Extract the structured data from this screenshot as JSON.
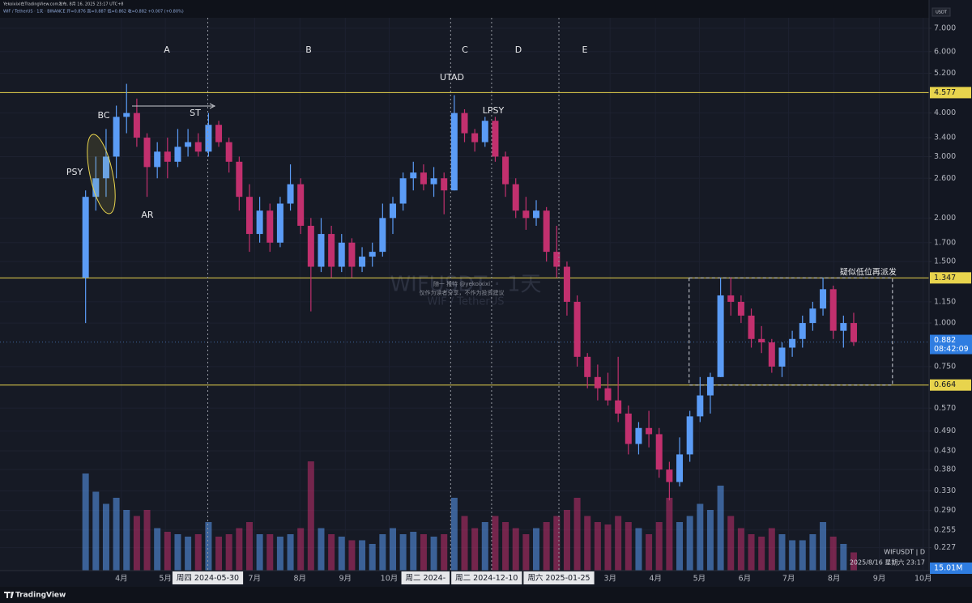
{
  "chart_data": {
    "type": "candlestick",
    "header": "Yekoixixi在TradingView.com发布, 8月 16, 2025 23:17 UTC+8",
    "subheader": "WIF / TetherUS · 1天 · BINANCE  开=0.876 高=0.887 低=0.862 收=0.882 +0.007 (+0.80%)",
    "currency": "USDT",
    "watermark": [
      "WIFUSDT · 1天",
      "WIF / TetherUS"
    ],
    "watermark_note": [
      "随一 推特 @yekoixixi",
      "仅作为读者分享，不作为投资建议"
    ],
    "annotations": [
      "A",
      "B",
      "C",
      "D",
      "E",
      "UTAD",
      "LPSY",
      "BC",
      "ST",
      "PSY",
      "AR"
    ],
    "symbol_label": "WIFUSDT | D",
    "datetime_label": "2025/8/16 星期六 23:17",
    "brand": "TradingView",
    "countdown": "08:42:09",
    "log_scale": true,
    "grid": true,
    "up_color": "#5b9cf6",
    "down_color": "#c2306e",
    "level_color": "#e8d44d",
    "xlim": [
      "2024-01-09",
      "2025-10-05"
    ],
    "ylim": [
      0.195,
      7.5
    ],
    "yticks": [
      {
        "value": 7,
        "label": "7.000"
      },
      {
        "value": 6,
        "label": "6.000"
      },
      {
        "value": 5.2,
        "label": "5.200"
      },
      {
        "value": 4,
        "label": "4.000"
      },
      {
        "value": 3.4,
        "label": "3.400"
      },
      {
        "value": 3,
        "label": "3.000"
      },
      {
        "value": 2.6,
        "label": "2.600"
      },
      {
        "value": 2,
        "label": "2.000"
      },
      {
        "value": 1.7,
        "label": "1.700"
      },
      {
        "value": 1.5,
        "label": "1.500"
      },
      {
        "value": 1.15,
        "label": "1.150"
      },
      {
        "value": 1,
        "label": "1.000"
      },
      {
        "value": 0.75,
        "label": "0.750"
      },
      {
        "value": 0.57,
        "label": "0.570"
      },
      {
        "value": 0.49,
        "label": "0.490"
      },
      {
        "value": 0.43,
        "label": "0.430"
      },
      {
        "value": 0.38,
        "label": "0.380"
      },
      {
        "value": 0.33,
        "label": "0.330"
      },
      {
        "value": 0.29,
        "label": "0.290"
      },
      {
        "value": 0.255,
        "label": "0.255"
      },
      {
        "value": 0.227,
        "label": "0.227"
      }
    ],
    "xticks": [
      {
        "value": "2024-04-01",
        "label": "4月"
      },
      {
        "value": "2024-05-01",
        "label": "5月"
      },
      {
        "value": "2024-07-01",
        "label": "7月"
      },
      {
        "value": "2024-08-01",
        "label": "8月"
      },
      {
        "value": "2024-09-01",
        "label": "9月"
      },
      {
        "value": "2024-10-01",
        "label": "10月"
      },
      {
        "value": "2025-03-01",
        "label": "3月"
      },
      {
        "value": "2025-04-01",
        "label": "4月"
      },
      {
        "value": "2025-05-01",
        "label": "5月"
      },
      {
        "value": "2025-06-01",
        "label": "6月"
      },
      {
        "value": "2025-07-01",
        "label": "7月"
      },
      {
        "value": "2025-08-01",
        "label": "8月"
      },
      {
        "value": "2025-09-01",
        "label": "9月"
      },
      {
        "value": "2025-10-01",
        "label": "10月"
      }
    ],
    "markers": [
      {
        "date": "2024-05-30",
        "label": "周四 2024-05-30"
      },
      {
        "date": "2024-11-12",
        "label": "周二 2024-"
      },
      {
        "date": "2024-12-10",
        "label": "周二 2024-12-10"
      },
      {
        "date": "2025-01-25",
        "label": "周六 2025-01-25"
      }
    ],
    "levels": [
      4.577,
      1.347,
      0.664
    ],
    "box": {
      "from": "2025-04-24",
      "to": "2025-09-10",
      "top": 1.347,
      "bottom": 0.664,
      "label": "疑似低位再派发"
    },
    "x": [
      "2024-03-04",
      "2024-03-11",
      "2024-03-18",
      "2024-03-25",
      "2024-04-01",
      "2024-04-08",
      "2024-04-15",
      "2024-04-22",
      "2024-04-29",
      "2024-05-06",
      "2024-05-13",
      "2024-05-20",
      "2024-05-27",
      "2024-06-03",
      "2024-06-10",
      "2024-06-17",
      "2024-06-24",
      "2024-07-01",
      "2024-07-08",
      "2024-07-15",
      "2024-07-22",
      "2024-07-29",
      "2024-08-05",
      "2024-08-12",
      "2024-08-19",
      "2024-08-26",
      "2024-09-02",
      "2024-09-09",
      "2024-09-16",
      "2024-09-23",
      "2024-09-30",
      "2024-10-07",
      "2024-10-14",
      "2024-10-21",
      "2024-10-28",
      "2024-11-04",
      "2024-11-11",
      "2024-11-18",
      "2024-11-25",
      "2024-12-02",
      "2024-12-09",
      "2024-12-16",
      "2024-12-23",
      "2024-12-30",
      "2025-01-06",
      "2025-01-13",
      "2025-01-20",
      "2025-01-27",
      "2025-02-03",
      "2025-02-10",
      "2025-02-17",
      "2025-02-24",
      "2025-03-03",
      "2025-03-10",
      "2025-03-17",
      "2025-03-24",
      "2025-03-31",
      "2025-04-07",
      "2025-04-14",
      "2025-04-21",
      "2025-04-28",
      "2025-05-05",
      "2025-05-12",
      "2025-05-19",
      "2025-05-26",
      "2025-06-02",
      "2025-06-09",
      "2025-06-16",
      "2025-06-23",
      "2025-06-30",
      "2025-07-07",
      "2025-07-14",
      "2025-07-21",
      "2025-07-28",
      "2025-08-04",
      "2025-08-11"
    ],
    "open": [
      1.35,
      2.3,
      2.6,
      3.0,
      3.9,
      4.0,
      3.4,
      2.8,
      3.1,
      2.9,
      3.2,
      3.3,
      3.1,
      3.7,
      3.3,
      2.9,
      2.3,
      1.8,
      2.1,
      1.7,
      2.2,
      2.5,
      1.9,
      1.45,
      1.8,
      1.45,
      1.7,
      1.45,
      1.55,
      1.6,
      2.0,
      2.2,
      2.6,
      2.7,
      2.5,
      2.6,
      2.4,
      4.0,
      3.5,
      3.3,
      3.8,
      3.0,
      2.5,
      2.1,
      2.0,
      2.1,
      1.6,
      1.45,
      1.15,
      0.8,
      0.7,
      0.65,
      0.6,
      0.55,
      0.45,
      0.5,
      0.48,
      0.38,
      0.35,
      0.42,
      0.54,
      0.62,
      0.7,
      1.2,
      1.15,
      1.05,
      0.9,
      0.88,
      0.75,
      0.85,
      0.9,
      1.0,
      1.1,
      1.25,
      0.95,
      1.0
    ],
    "high": [
      2.4,
      3.0,
      3.6,
      4.2,
      4.85,
      4.4,
      3.5,
      3.3,
      3.4,
      3.6,
      3.6,
      3.5,
      4.0,
      3.8,
      3.4,
      3.0,
      2.5,
      2.3,
      2.2,
      2.3,
      2.85,
      2.6,
      2.0,
      2.0,
      1.9,
      1.8,
      1.75,
      1.65,
      1.7,
      2.2,
      2.3,
      2.7,
      2.9,
      2.85,
      2.8,
      2.7,
      4.5,
      4.1,
      3.6,
      3.9,
      3.9,
      3.1,
      2.6,
      2.3,
      2.25,
      2.15,
      1.9,
      1.5,
      1.2,
      0.82,
      0.76,
      0.72,
      0.8,
      0.58,
      0.52,
      0.56,
      0.5,
      0.4,
      0.47,
      0.56,
      0.7,
      0.72,
      1.35,
      1.35,
      1.2,
      1.1,
      0.98,
      0.9,
      0.88,
      0.95,
      1.05,
      1.15,
      1.35,
      1.28,
      1.05,
      1.07
    ],
    "low": [
      1.0,
      2.1,
      2.3,
      2.6,
      3.5,
      3.2,
      2.3,
      2.6,
      2.6,
      2.8,
      3.0,
      3.0,
      3.0,
      3.2,
      2.7,
      2.1,
      1.6,
      1.7,
      1.6,
      1.65,
      2.1,
      1.8,
      1.08,
      1.4,
      1.35,
      1.4,
      1.35,
      1.4,
      1.45,
      1.55,
      1.8,
      2.1,
      2.4,
      2.4,
      2.3,
      2.05,
      2.4,
      3.3,
      3.1,
      3.2,
      2.9,
      2.3,
      2.0,
      1.85,
      1.9,
      1.5,
      1.35,
      1.05,
      0.75,
      0.65,
      0.6,
      0.58,
      0.52,
      0.42,
      0.42,
      0.44,
      0.36,
      0.31,
      0.34,
      0.4,
      0.52,
      0.55,
      0.7,
      1.05,
      1.0,
      0.85,
      0.82,
      0.72,
      0.7,
      0.8,
      0.85,
      0.95,
      1.05,
      0.9,
      0.85,
      0.86
    ],
    "close": [
      2.3,
      2.6,
      3.0,
      3.9,
      4.0,
      3.4,
      2.8,
      3.1,
      2.9,
      3.2,
      3.3,
      3.1,
      3.7,
      3.3,
      2.9,
      2.3,
      1.8,
      2.1,
      1.7,
      2.2,
      2.5,
      1.9,
      1.45,
      1.8,
      1.45,
      1.7,
      1.45,
      1.55,
      1.6,
      2.0,
      2.2,
      2.6,
      2.7,
      2.5,
      2.6,
      2.4,
      4.0,
      3.5,
      3.3,
      3.8,
      3.0,
      2.5,
      2.1,
      2.0,
      2.1,
      1.6,
      1.45,
      1.15,
      0.8,
      0.7,
      0.65,
      0.6,
      0.55,
      0.45,
      0.5,
      0.48,
      0.38,
      0.35,
      0.42,
      0.54,
      0.62,
      0.7,
      1.2,
      1.15,
      1.05,
      0.9,
      0.88,
      0.75,
      0.85,
      0.9,
      1.0,
      1.1,
      1.25,
      0.95,
      1.0,
      0.882
    ],
    "volume": {
      "vlim": [
        0,
        100
      ],
      "last_label": "15.01M",
      "values": [
        80,
        65,
        55,
        60,
        50,
        45,
        50,
        35,
        32,
        30,
        28,
        30,
        40,
        28,
        30,
        35,
        40,
        30,
        30,
        28,
        30,
        35,
        90,
        35,
        30,
        28,
        25,
        25,
        22,
        30,
        35,
        30,
        32,
        30,
        28,
        30,
        60,
        45,
        35,
        40,
        45,
        40,
        35,
        30,
        35,
        40,
        45,
        50,
        60,
        45,
        40,
        38,
        45,
        40,
        35,
        30,
        40,
        60,
        40,
        45,
        55,
        50,
        70,
        45,
        35,
        30,
        28,
        35,
        30,
        25,
        25,
        30,
        40,
        28,
        22,
        15.01
      ]
    }
  }
}
